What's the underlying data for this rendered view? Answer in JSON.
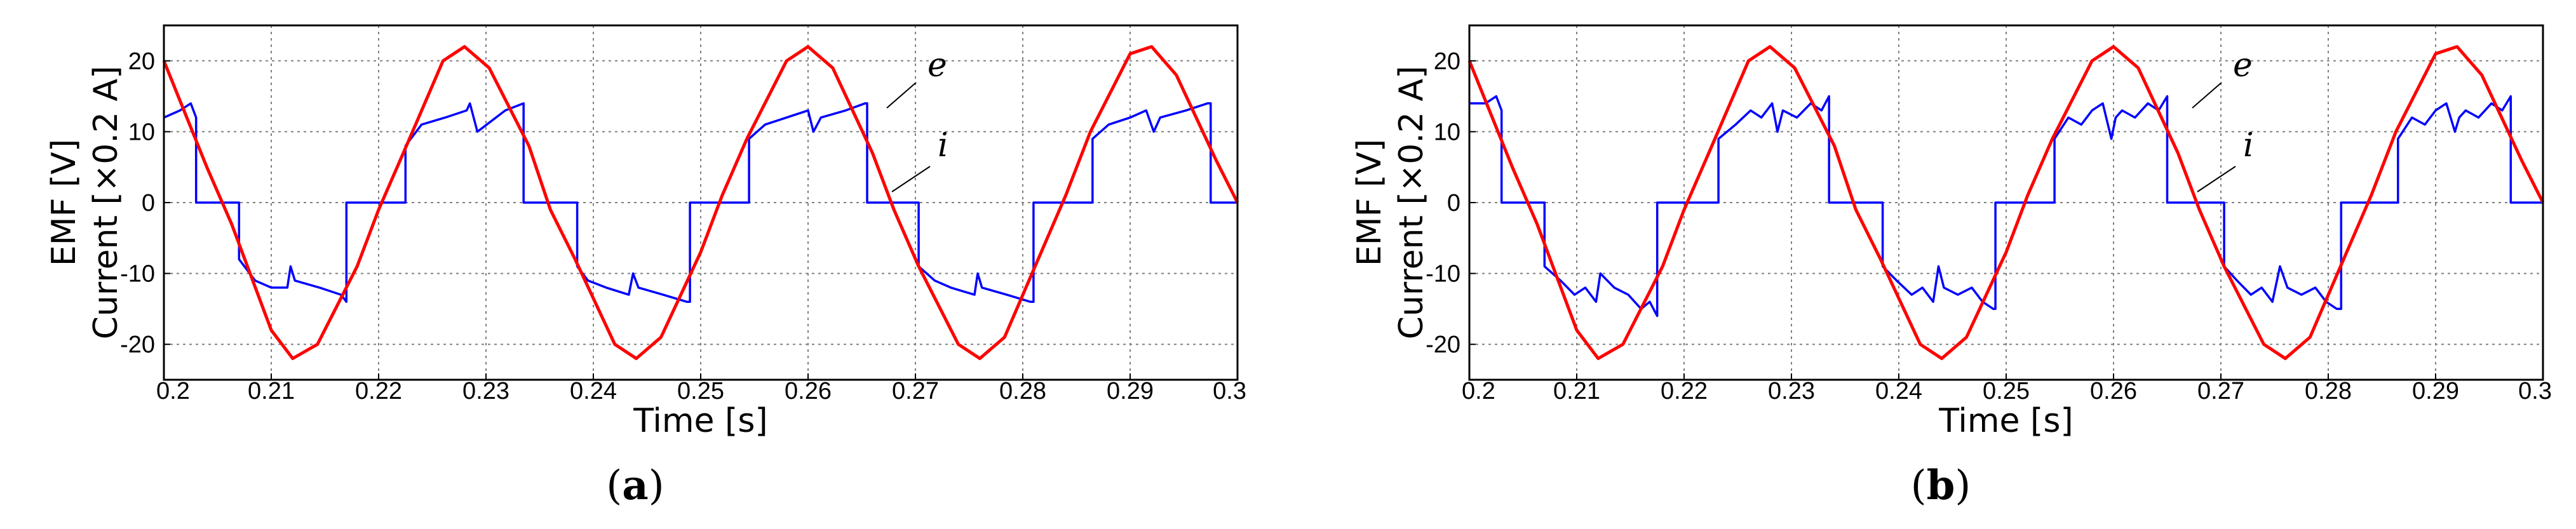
{
  "chart_data": [
    {
      "type": "line",
      "panel_label": "(a)",
      "panel_letter": "a",
      "xlabel": "Time [s]",
      "ylabel_line1": "EMF [V]",
      "ylabel_line2": "Current [×0.2 A]",
      "xlim": [
        0.2,
        0.3
      ],
      "ylim": [
        -25,
        25
      ],
      "grid": true,
      "x_ticks": [
        "0.2",
        "0.21",
        "0.22",
        "0.23",
        "0.24",
        "0.25",
        "0.26",
        "0.27",
        "0.28",
        "0.29",
        "0.3"
      ],
      "y_ticks": [
        "20",
        "10",
        "0",
        "-10",
        "-20"
      ],
      "series": [
        {
          "name": "e",
          "color": "#ff0000",
          "x": [
            0.2,
            0.204,
            0.2063,
            0.21,
            0.212,
            0.2143,
            0.218,
            0.22,
            0.2223,
            0.226,
            0.228,
            0.2303,
            0.234,
            0.236,
            0.2383,
            0.242,
            0.244,
            0.2463,
            0.25,
            0.252,
            0.2543,
            0.258,
            0.26,
            0.2623,
            0.266,
            0.268,
            0.2703,
            0.274,
            0.276,
            0.2783,
            0.282,
            0.284,
            0.2863,
            0.29,
            0.292,
            0.2943,
            0.298,
            0.3
          ],
          "y": [
            20,
            5,
            -3,
            -18,
            -22,
            -20,
            -9,
            -1,
            7,
            20,
            22,
            19,
            8,
            -1,
            -8,
            -20,
            -22,
            -19,
            -7,
            1,
            9,
            20,
            22,
            19,
            7,
            -1,
            -9,
            -20,
            -22,
            -19,
            -6,
            1,
            10,
            21,
            22,
            18,
            6,
            0
          ]
        },
        {
          "name": "i",
          "color": "#0000ff",
          "x": [
            0.2,
            0.2015,
            0.2025,
            0.203,
            0.203,
            0.207,
            0.207,
            0.2085,
            0.21,
            0.2115,
            0.2118,
            0.2122,
            0.2145,
            0.2165,
            0.217,
            0.217,
            0.2225,
            0.2225,
            0.224,
            0.2262,
            0.2282,
            0.2285,
            0.2292,
            0.2318,
            0.2335,
            0.2335,
            0.2385,
            0.2385,
            0.2395,
            0.2412,
            0.2433,
            0.2437,
            0.2442,
            0.2465,
            0.2487,
            0.249,
            0.249,
            0.2545,
            0.2545,
            0.256,
            0.258,
            0.26,
            0.2605,
            0.2612,
            0.2635,
            0.2653,
            0.2655,
            0.2655,
            0.2703,
            0.2703,
            0.2718,
            0.2733,
            0.2755,
            0.2758,
            0.2762,
            0.2785,
            0.2807,
            0.281,
            0.281,
            0.2865,
            0.2865,
            0.288,
            0.29,
            0.2915,
            0.2922,
            0.2928,
            0.2952,
            0.2972,
            0.2975,
            0.2975,
            0.3
          ],
          "y": [
            12,
            13,
            14,
            12,
            0,
            0,
            -8,
            -11,
            -12,
            -12,
            -9,
            -11,
            -12,
            -13,
            -14,
            0,
            0,
            8,
            11,
            12,
            13,
            14,
            10,
            13,
            14,
            0,
            0,
            -9,
            -11,
            -12,
            -13,
            -10,
            -12,
            -13,
            -14,
            -14,
            0,
            0,
            9,
            11,
            12,
            13,
            10,
            12,
            13,
            14,
            14,
            0,
            0,
            -9,
            -11,
            -12,
            -13,
            -10,
            -12,
            -13,
            -14,
            -14,
            0,
            0,
            9,
            11,
            12,
            13,
            10,
            12,
            13,
            14,
            14,
            0,
            0
          ]
        }
      ]
    },
    {
      "type": "line",
      "panel_label": "(b)",
      "panel_letter": "b",
      "xlabel": "Time [s]",
      "ylabel_line1": "EMF [V]",
      "ylabel_line2": "Current [×0.2 A]",
      "xlim": [
        0.2,
        0.3
      ],
      "ylim": [
        -25,
        25
      ],
      "grid": true,
      "x_ticks": [
        "0.2",
        "0.21",
        "0.22",
        "0.23",
        "0.24",
        "0.25",
        "0.26",
        "0.27",
        "0.28",
        "0.29",
        "0.3"
      ],
      "y_ticks": [
        "20",
        "10",
        "0",
        "-10",
        "-20"
      ],
      "series": [
        {
          "name": "e",
          "color": "#ff0000",
          "x": [
            0.2,
            0.204,
            0.2063,
            0.21,
            0.212,
            0.2143,
            0.218,
            0.22,
            0.2223,
            0.226,
            0.228,
            0.2303,
            0.234,
            0.236,
            0.2383,
            0.242,
            0.244,
            0.2463,
            0.25,
            0.252,
            0.2543,
            0.258,
            0.26,
            0.2623,
            0.266,
            0.268,
            0.2703,
            0.274,
            0.276,
            0.2783,
            0.282,
            0.284,
            0.2863,
            0.29,
            0.292,
            0.2943,
            0.298,
            0.3
          ],
          "y": [
            20,
            5,
            -3,
            -18,
            -22,
            -20,
            -9,
            -1,
            7,
            20,
            22,
            19,
            8,
            -1,
            -8,
            -20,
            -22,
            -19,
            -7,
            1,
            9,
            20,
            22,
            19,
            7,
            -1,
            -9,
            -20,
            -22,
            -19,
            -6,
            1,
            10,
            21,
            22,
            18,
            6,
            0
          ]
        },
        {
          "name": "i",
          "color": "#0000ff",
          "x": [
            0.2,
            0.2015,
            0.2025,
            0.203,
            0.203,
            0.207,
            0.207,
            0.2085,
            0.2098,
            0.2108,
            0.2118,
            0.2122,
            0.2135,
            0.2148,
            0.216,
            0.2168,
            0.2175,
            0.2175,
            0.2232,
            0.2232,
            0.2248,
            0.2262,
            0.2272,
            0.2282,
            0.2287,
            0.2292,
            0.2305,
            0.2318,
            0.2328,
            0.2335,
            0.2335,
            0.2385,
            0.2385,
            0.2398,
            0.2412,
            0.2422,
            0.2432,
            0.2437,
            0.2442,
            0.2455,
            0.2468,
            0.2478,
            0.2488,
            0.249,
            0.249,
            0.2545,
            0.2545,
            0.2558,
            0.257,
            0.258,
            0.259,
            0.2598,
            0.2602,
            0.2608,
            0.262,
            0.2632,
            0.2642,
            0.265,
            0.265,
            0.2703,
            0.2703,
            0.2715,
            0.2728,
            0.2738,
            0.2748,
            0.2755,
            0.2762,
            0.2775,
            0.2788,
            0.2798,
            0.2808,
            0.2812,
            0.2812,
            0.2865,
            0.2865,
            0.2878,
            0.289,
            0.29,
            0.291,
            0.2918,
            0.2922,
            0.2928,
            0.294,
            0.2952,
            0.2962,
            0.297,
            0.297,
            0.3
          ],
          "y": [
            14,
            14,
            15,
            13,
            0,
            0,
            -9,
            -11,
            -13,
            -12,
            -14,
            -10,
            -12,
            -13,
            -15,
            -14,
            -16,
            0,
            0,
            9,
            11,
            13,
            12,
            14,
            10,
            13,
            12,
            14,
            13,
            15,
            0,
            0,
            -9,
            -11,
            -13,
            -12,
            -14,
            -9,
            -12,
            -13,
            -12,
            -14,
            -15,
            -15,
            0,
            0,
            9,
            12,
            11,
            13,
            14,
            9,
            12,
            13,
            12,
            14,
            13,
            15,
            0,
            0,
            -9,
            -11,
            -13,
            -12,
            -14,
            -9,
            -12,
            -13,
            -12,
            -14,
            -15,
            -15,
            0,
            0,
            9,
            12,
            11,
            13,
            14,
            10,
            12,
            13,
            12,
            14,
            13,
            15,
            0,
            0
          ]
        }
      ]
    }
  ]
}
